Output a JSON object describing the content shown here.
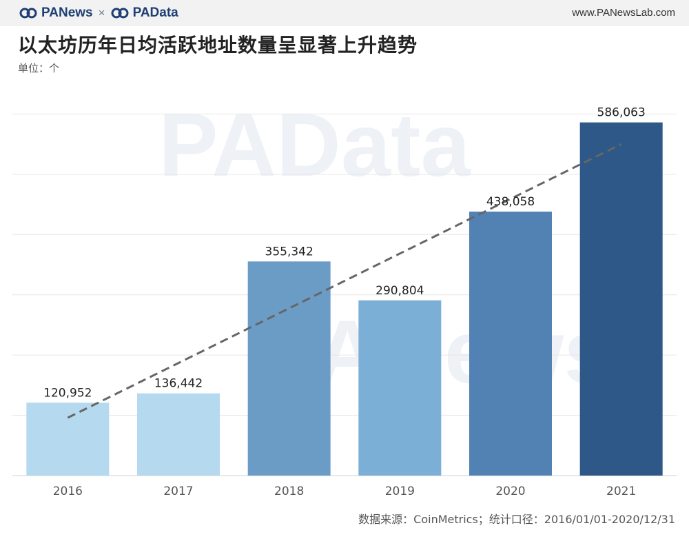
{
  "header": {
    "brand_left": "PANews",
    "brand_separator": "×",
    "brand_right": "PAData",
    "website": "www.PANewsLab.com",
    "brand_color": "#1f3f73"
  },
  "watermarks": [
    "PAData",
    "PANews"
  ],
  "footer": {
    "source": "数据来源：CoinMetrics；统计口径：2016/01/01-2020/12/31"
  },
  "chart_data": {
    "type": "bar",
    "title": "以太坊历年日均活跃地址数量呈显著上升趋势",
    "unit_label": "单位：个",
    "categories": [
      "2016",
      "2017",
      "2018",
      "2019",
      "2020",
      "2021"
    ],
    "values": [
      120952,
      136442,
      355342,
      290804,
      438058,
      586063
    ],
    "value_labels": [
      "120,952",
      "136,442",
      "355,342",
      "290,804",
      "438,058",
      "586,063"
    ],
    "bar_colors": [
      "#b5d9ef",
      "#b5d9ef",
      "#6a9cc6",
      "#7bafd5",
      "#5282b3",
      "#2d5888"
    ],
    "ylim": [
      0,
      700000
    ],
    "grid": true,
    "y_tick_labels_shown": false,
    "trendline": {
      "style": "dashed",
      "color": "#666666",
      "from_value": 96000,
      "to_value": 550000
    }
  }
}
